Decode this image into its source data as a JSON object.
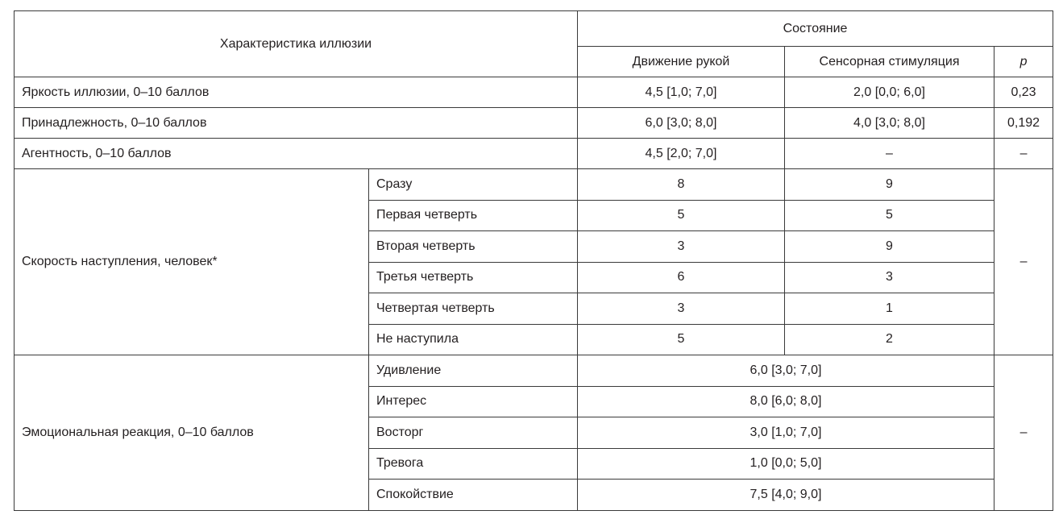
{
  "header": {
    "characteristic": "Характеристика иллюзии",
    "condition": "Состояние",
    "hand_movement": "Движение рукой",
    "sensory_stimulation": "Сенсорная стимуляция",
    "p": "p"
  },
  "rows": [
    {
      "label": "Яркость иллюзии, 0–10 баллов",
      "hand": "4,5 [1,0; 7,0]",
      "sensory": "2,0 [0,0; 6,0]",
      "p": "0,23"
    },
    {
      "label": "Принадлежность, 0–10 баллов",
      "hand": "6,0 [3,0; 8,0]",
      "sensory": "4,0 [3,0; 8,0]",
      "p": "0,192"
    },
    {
      "label": "Агентность, 0–10 баллов",
      "hand": "4,5 [2,0; 7,0]",
      "sensory": "–",
      "p": "–"
    }
  ],
  "onset": {
    "label": "Скорость наступления, человек*",
    "p": "–",
    "items": [
      {
        "label": "Сразу",
        "hand": "8",
        "sensory": "9"
      },
      {
        "label": "Первая четверть",
        "hand": "5",
        "sensory": "5"
      },
      {
        "label": "Вторая четверть",
        "hand": "3",
        "sensory": "9"
      },
      {
        "label": "Третья четверть",
        "hand": "6",
        "sensory": "3"
      },
      {
        "label": "Четвертая четверть",
        "hand": "3",
        "sensory": "1"
      },
      {
        "label": "Не наступила",
        "hand": "5",
        "sensory": "2"
      }
    ]
  },
  "emotion": {
    "label": "Эмоциональная реакция, 0–10 баллов",
    "p": "–",
    "items": [
      {
        "label": "Удивление",
        "value": "6,0 [3,0; 7,0]"
      },
      {
        "label": "Интерес",
        "value": "8,0 [6,0; 8,0]"
      },
      {
        "label": "Восторг",
        "value": "3,0 [1,0; 7,0]"
      },
      {
        "label": "Тревога",
        "value": "1,0 [0,0; 5,0]"
      },
      {
        "label": "Спокойствие",
        "value": "7,5 [4,0; 9,0]"
      }
    ]
  }
}
